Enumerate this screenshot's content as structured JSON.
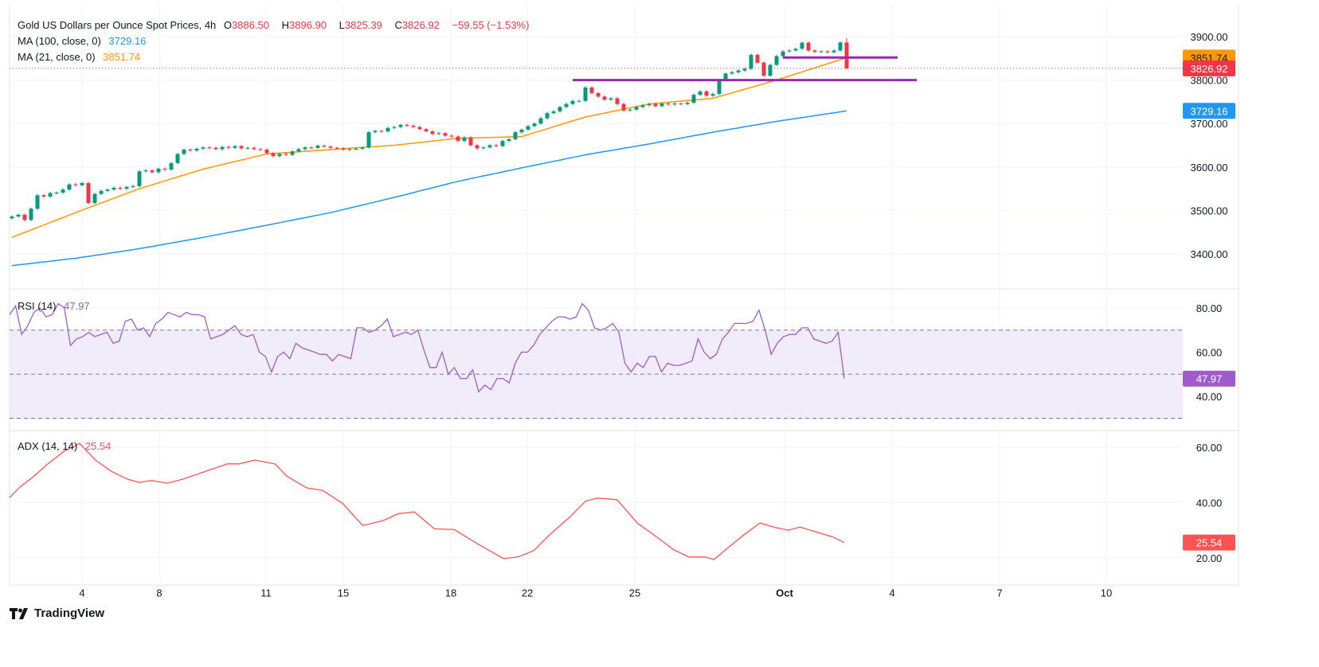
{
  "header": {
    "title": "Gold US Dollars per Ounce Spot Prices, 4h",
    "open_label": "O",
    "open": "3886.50",
    "high_label": "H",
    "high": "3896.90",
    "low_label": "L",
    "low": "3825.39",
    "close_label": "C",
    "close": "3826.92",
    "change": "−59.55 (−1.53%)",
    "ma100_label": "MA (100, close, 0)",
    "ma100_value": "3729.16",
    "ma21_label": "MA (21, close, 0)",
    "ma21_value": "3851.74",
    "rsi_label": "RSI (14)",
    "rsi_value": "47.97",
    "adx_label": "ADX (14, 14)",
    "adx_value": "25.54"
  },
  "footer": {
    "brand": "TradingView",
    "logo_icon": "tradingview-logo-icon"
  },
  "colors": {
    "up": "#089981",
    "down": "#f23645",
    "ma21": "#ff9800",
    "ma100": "#2196f3",
    "rsi": "#a05ccc",
    "rsi_band": "#f0ecf9",
    "levels": "#9c27b0",
    "adx": "#ff5252"
  },
  "chart_data": [
    {
      "type": "candlestick",
      "pane": "price",
      "ylim": [
        3330,
        3930
      ],
      "yticks": [
        "3900.00",
        "3800.00",
        "3700.00",
        "3600.00",
        "3500.00",
        "3400.00"
      ],
      "ytick_values": [
        3900,
        3800,
        3700,
        3600,
        3500,
        3400
      ],
      "xticks": [
        "4",
        "8",
        "11",
        "15",
        "18",
        "22",
        "25",
        "Oct",
        "4",
        "7",
        "10"
      ],
      "grid": true,
      "closes": [
        3486,
        3490,
        3478,
        3504,
        3535,
        3532,
        3540,
        3541,
        3548,
        3560,
        3558,
        3563,
        3517,
        3538,
        3545,
        3548,
        3552,
        3550,
        3554,
        3556,
        3590,
        3592,
        3588,
        3596,
        3594,
        3609,
        3630,
        3640,
        3638,
        3642,
        3645,
        3644,
        3641,
        3646,
        3644,
        3648,
        3643,
        3644,
        3641,
        3640,
        3632,
        3625,
        3630,
        3628,
        3636,
        3641,
        3645,
        3644,
        3649,
        3647,
        3644,
        3643,
        3640,
        3641,
        3642,
        3645,
        3680,
        3683,
        3682,
        3690,
        3692,
        3697,
        3695,
        3692,
        3687,
        3682,
        3676,
        3678,
        3672,
        3670,
        3660,
        3668,
        3650,
        3643,
        3645,
        3650,
        3648,
        3660,
        3664,
        3680,
        3686,
        3694,
        3700,
        3712,
        3724,
        3728,
        3738,
        3745,
        3752,
        3752,
        3783,
        3770,
        3762,
        3755,
        3758,
        3745,
        3730,
        3732,
        3738,
        3742,
        3745,
        3740,
        3746,
        3744,
        3746,
        3745,
        3748,
        3766,
        3774,
        3764,
        3768,
        3800,
        3815,
        3818,
        3822,
        3826,
        3858,
        3840,
        3810,
        3835,
        3855,
        3866,
        3868,
        3872,
        3886,
        3868,
        3865,
        3866,
        3864,
        3868,
        3886.5,
        3826.92
      ],
      "last_high": 3896.9,
      "last_low": 3825.39,
      "ma21": {
        "label": "MA (21, close, 0)",
        "at_candle": [
          0,
          10,
          20,
          30,
          40,
          50,
          60,
          70,
          80,
          90,
          100,
          110,
          120,
          131
        ],
        "values": [
          3438,
          3495,
          3550,
          3595,
          3630,
          3640,
          3650,
          3666,
          3670,
          3715,
          3745,
          3758,
          3800,
          3851.74
        ]
      },
      "ma100": {
        "label": "MA (100, close, 0)",
        "at_candle": [
          0,
          10,
          20,
          30,
          40,
          50,
          60,
          70,
          80,
          90,
          100,
          110,
          120,
          131
        ],
        "values": [
          3373,
          3390,
          3412,
          3438,
          3466,
          3495,
          3530,
          3567,
          3598,
          3628,
          3653,
          3680,
          3705,
          3729.16
        ]
      },
      "levels": [
        {
          "value": 3800,
          "from_candle": 88,
          "to_candle": 142
        },
        {
          "value": 3852,
          "from_candle": 121,
          "to_candle": 139
        }
      ],
      "price_tags": [
        {
          "text": "3851.74",
          "value": 3851.74,
          "color": "#ff9800"
        },
        {
          "text": "3826.92",
          "value": 3826.92,
          "color": "#f23645"
        },
        {
          "text": "3729.16",
          "value": 3729.16,
          "color": "#2196f3"
        }
      ]
    },
    {
      "type": "line",
      "pane": "rsi",
      "name": "RSI (14)",
      "ylim": [
        24,
        86
      ],
      "yticks": [
        "80.00",
        "60.00",
        "40.00"
      ],
      "ytick_values": [
        80,
        60,
        40
      ],
      "band": [
        30,
        70
      ],
      "midline": 50,
      "values": [
        77,
        81,
        68,
        72,
        78,
        80,
        76,
        77,
        82,
        80,
        63,
        66,
        67,
        69,
        67,
        68,
        69,
        64,
        65,
        74,
        75,
        70,
        71,
        67,
        73,
        75,
        78,
        77,
        76,
        78,
        77,
        77,
        76,
        66,
        67,
        68,
        70,
        72,
        68,
        67,
        68,
        60,
        58,
        51,
        58,
        60,
        57,
        64,
        62,
        61,
        60,
        59,
        59,
        56,
        59,
        58,
        57,
        71,
        71,
        69,
        70,
        72,
        75,
        67,
        68,
        69,
        68,
        70,
        61,
        53,
        53,
        60,
        50,
        53,
        48,
        48,
        52,
        42,
        45,
        43,
        48,
        48,
        46,
        55,
        60,
        60,
        63,
        68,
        71,
        74,
        76,
        76,
        75,
        76,
        82,
        79,
        71,
        70,
        71,
        73,
        69,
        55,
        51,
        55,
        53,
        58,
        58,
        51,
        55,
        54,
        54,
        55,
        56,
        66,
        60,
        57,
        59,
        66,
        69,
        73,
        73,
        73,
        74,
        79,
        70,
        59,
        64,
        67,
        68,
        68,
        71,
        71,
        66,
        65,
        64,
        65,
        69,
        47.97
      ]
    },
    {
      "type": "line",
      "pane": "adx",
      "name": "ADX (14, 14)",
      "ylim": [
        15,
        66
      ],
      "yticks": [
        "60.00",
        "40.00",
        "20.00"
      ],
      "ytick_values": [
        60,
        40,
        20
      ],
      "values": [
        41.8,
        45.5,
        49,
        54,
        58.5,
        61.4,
        55.4,
        51.3,
        48.5,
        47.3,
        48,
        47,
        48.5,
        51,
        54,
        54,
        55.4,
        54,
        49.6,
        45.3,
        44.4,
        39.7,
        31.7,
        33.4,
        36,
        36.6,
        30.5,
        30.2,
        25,
        19.7,
        20.3,
        22.6,
        28.4,
        34.7,
        40.5,
        41.6,
        41,
        32.6,
        27.4,
        23,
        20.3,
        20.3,
        19.4,
        23.7,
        28.4,
        32.6,
        30.9,
        30,
        31.1,
        29.4,
        27.7,
        25.54
      ],
      "at_x_fraction": [
        0,
        0.012,
        0.027,
        0.046,
        0.065,
        0.084,
        0.103,
        0.122,
        0.141,
        0.155,
        0.17,
        0.189,
        0.208,
        0.232,
        0.261,
        0.275,
        0.294,
        0.318,
        0.332,
        0.356,
        0.375,
        0.399,
        0.423,
        0.447,
        0.466,
        0.485,
        0.509,
        0.533,
        0.561,
        0.592,
        0.609,
        0.628,
        0.647,
        0.671,
        0.69,
        0.704,
        0.728,
        0.752,
        0.776,
        0.795,
        0.814,
        0.833,
        0.844,
        0.861,
        0.88,
        0.899,
        0.918,
        0.933,
        0.947,
        0.966,
        0.985,
        1
      ]
    }
  ]
}
